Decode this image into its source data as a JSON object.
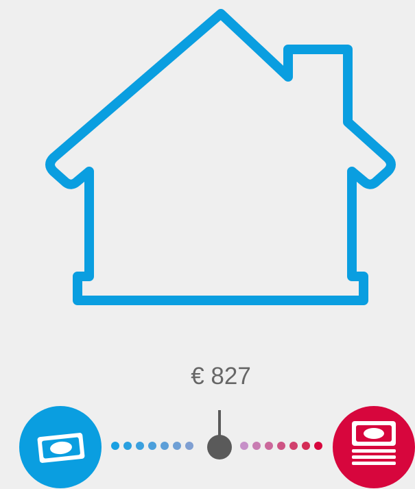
{
  "indicator": {
    "label": "€ 827"
  }
}
